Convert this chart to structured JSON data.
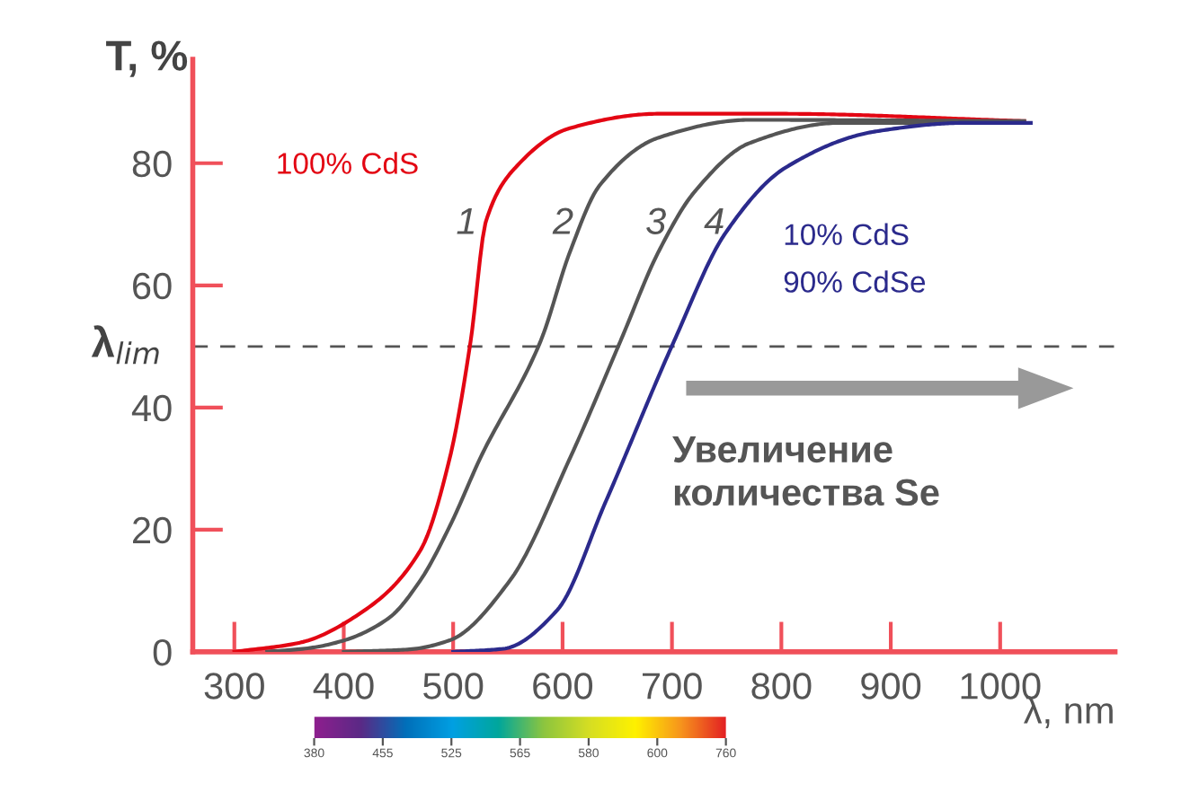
{
  "chart_data": [
    {
      "type": "line",
      "ylabel": "T, %",
      "xlabel": "λ, nm",
      "xlim": [
        262,
        1105
      ],
      "xticks": [
        300,
        400,
        500,
        600,
        700,
        800,
        900,
        1000
      ],
      "ylim": [
        0,
        97
      ],
      "yticks": [
        0,
        20,
        40,
        60,
        80
      ],
      "grid": false,
      "legend": false,
      "marker": "none",
      "line_style": "solid",
      "series": [
        {
          "name": "1",
          "color": "#e30613",
          "x": [
            300,
            360,
            415,
            470,
            497,
            516,
            530,
            557,
            606,
            688,
            798,
            1022
          ],
          "values": [
            0,
            1.5,
            6.3,
            16.6,
            31.8,
            50.9,
            70.5,
            79.3,
            85.7,
            88.1,
            88.1,
            86.9
          ]
        },
        {
          "name": "2",
          "color": "#555555",
          "x": [
            330,
            368,
            399,
            441,
            470,
            497,
            525,
            580,
            607,
            634,
            688,
            771,
            1022
          ],
          "values": [
            0,
            0.6,
            1.8,
            5.5,
            11.7,
            20.6,
            31.8,
            50.9,
            65.6,
            76.4,
            84.2,
            87.1,
            86.9
          ]
        },
        {
          "name": "3",
          "color": "#555555",
          "x": [
            400,
            460,
            497,
            552,
            607,
            653,
            688,
            721,
            771,
            853,
            1022
          ],
          "values": [
            0,
            0.4,
            1.9,
            11.7,
            31.8,
            50.9,
            65.6,
            75.4,
            83.3,
            86.6,
            86.6
          ]
        },
        {
          "name": "4",
          "color": "#2b2a8c",
          "x": [
            500,
            546,
            595,
            639,
            702,
            749,
            804,
            886,
            968,
            1028
          ],
          "values": [
            0,
            0.5,
            6.8,
            24.4,
            50.9,
            68.6,
            79.3,
            85.2,
            86.6,
            86.6
          ]
        }
      ],
      "ref_lines": [
        {
          "axis": "y",
          "value": 50,
          "label": "λ$_{lim}$",
          "color": "#555555",
          "line_style": "dashed"
        }
      ],
      "annotations": [
        "100% CdS",
        "10% CdS\n90% CdSe",
        "Увеличение\nколичества Se"
      ]
    },
    {
      "type": "other",
      "annotations": [
        "380",
        "455",
        "525",
        "565",
        "580",
        "600",
        "760"
      ]
    }
  ]
}
